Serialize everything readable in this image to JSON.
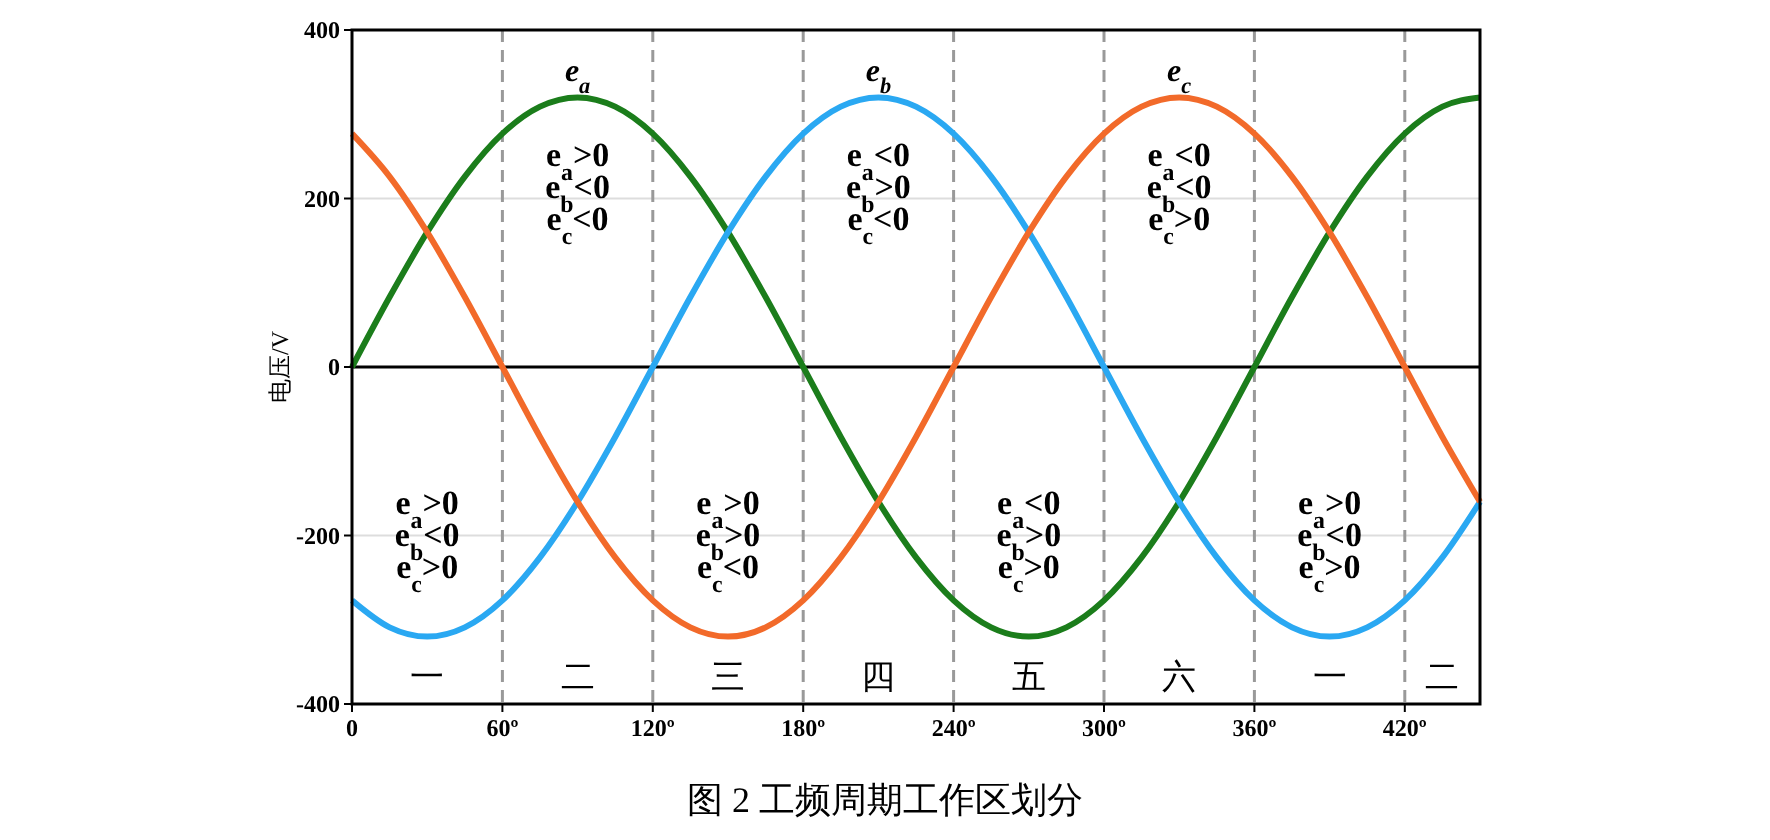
{
  "chart_data": {
    "type": "line",
    "ylabel": "电压/V",
    "x": [
      0,
      15,
      30,
      45,
      60,
      75,
      90,
      105,
      120,
      135,
      150,
      165,
      180,
      195,
      210,
      225,
      240,
      255,
      270,
      285,
      300,
      315,
      330,
      345,
      360,
      375,
      390,
      405,
      420,
      435,
      450
    ],
    "series": [
      {
        "name": "e$_{a}$",
        "color": "#1b7d1b",
        "values": [
          0,
          83,
          160,
          226,
          277,
          309,
          320,
          309,
          277,
          226,
          160,
          83,
          0,
          -83,
          -160,
          -226,
          -277,
          -309,
          -320,
          -309,
          -277,
          -226,
          -160,
          -83,
          0,
          83,
          160,
          226,
          277,
          309,
          320
        ]
      },
      {
        "name": "e$_{b}$",
        "color": "#2aa8f2",
        "values": [
          -277,
          -309,
          -320,
          -309,
          -277,
          -226,
          -160,
          -83,
          0,
          83,
          160,
          226,
          277,
          309,
          320,
          309,
          277,
          226,
          160,
          83,
          0,
          -83,
          -160,
          -226,
          -277,
          -309,
          -320,
          -309,
          -277,
          -226,
          -160
        ]
      },
      {
        "name": "e$_{c}$",
        "color": "#f26a2a",
        "values": [
          277,
          226,
          160,
          83,
          0,
          -83,
          -160,
          -226,
          -277,
          -309,
          -320,
          -309,
          -277,
          -226,
          -160,
          -83,
          0,
          83,
          160,
          226,
          277,
          309,
          320,
          309,
          277,
          226,
          160,
          83,
          0,
          -83,
          -160
        ]
      }
    ],
    "xlim": [
      0,
      450
    ],
    "xticks": [
      0,
      {
        "value": 60,
        "label": "60º"
      },
      {
        "value": 120,
        "label": "120º"
      },
      {
        "value": 180,
        "label": "180º"
      },
      {
        "value": 240,
        "label": "240º"
      },
      {
        "value": 300,
        "label": "300º"
      },
      {
        "value": 360,
        "label": "360º"
      },
      {
        "value": 420,
        "label": "420º"
      }
    ],
    "ylim": [
      -400,
      400
    ],
    "yticks": [
      -400,
      -200,
      0,
      200,
      400
    ],
    "grid": "y",
    "line_style": "solid",
    "marker": "none",
    "legend": false,
    "ref_lines": [
      {
        "axis": "y",
        "value": 0,
        "color": "#000000",
        "line_style": "solid"
      },
      {
        "axis": "x",
        "value": 60,
        "color": "#999999",
        "line_style": "dashed"
      },
      {
        "axis": "x",
        "value": 120,
        "color": "#999999",
        "line_style": "dashed"
      },
      {
        "axis": "x",
        "value": 180,
        "color": "#999999",
        "line_style": "dashed"
      },
      {
        "axis": "x",
        "value": 240,
        "color": "#999999",
        "line_style": "dashed"
      },
      {
        "axis": "x",
        "value": 300,
        "color": "#999999",
        "line_style": "dashed"
      },
      {
        "axis": "x",
        "value": 360,
        "color": "#999999",
        "line_style": "dashed"
      },
      {
        "axis": "x",
        "value": 420,
        "color": "#999999",
        "line_style": "dashed"
      }
    ],
    "annotations": [
      "e$_{a}$>0",
      "e$_{b}$<0",
      "e$_{c}$>0",
      "e$_{a}$>0",
      "e$_{b}$<0",
      "e$_{c}$<0",
      "e$_{a}$>0",
      "e$_{b}$>0",
      "e$_{c}$<0",
      "e$_{a}$<0",
      "e$_{b}$>0",
      "e$_{c}$<0",
      "e$_{a}$<0",
      "e$_{b}$>0",
      "e$_{c}$>0",
      "e$_{a}$<0",
      "e$_{b}$<0",
      "e$_{c}$>0",
      "e$_{a}$>0",
      "e$_{b}$<0",
      "e$_{c}$>0",
      "一",
      "二",
      "三",
      "四",
      "五",
      "六",
      "一",
      "二",
      "图 2  工频周期工作区划分"
    ]
  }
}
